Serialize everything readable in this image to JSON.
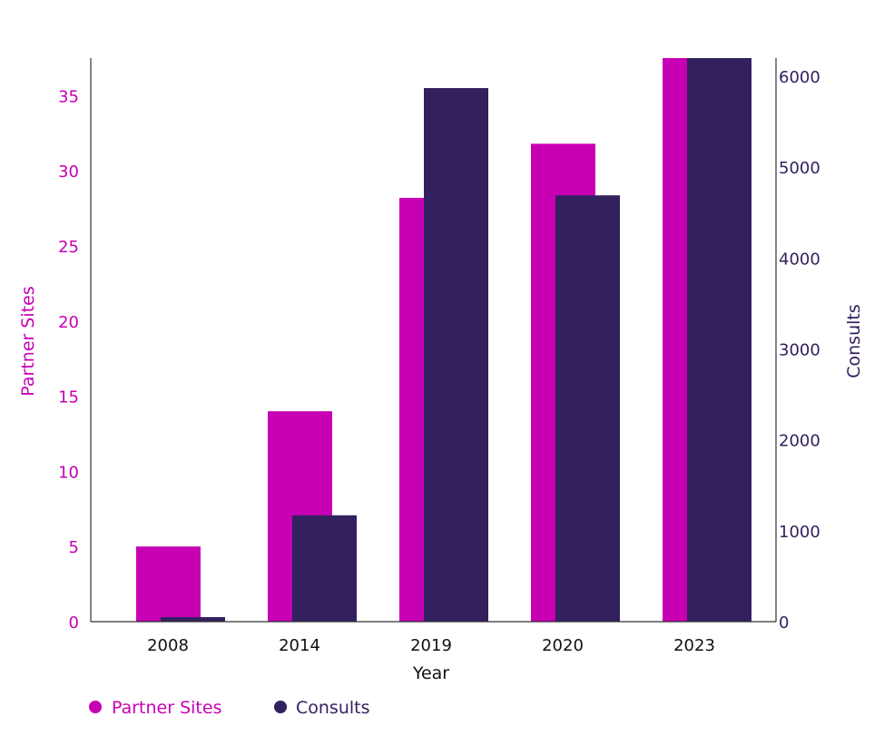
{
  "chart_data": {
    "type": "bar",
    "categories": [
      "2008",
      "2014",
      "2019",
      "2020",
      "2023"
    ],
    "series": [
      {
        "name": "Partner Sites",
        "axis": "left",
        "color": "#c800b4",
        "values": [
          5,
          14,
          28.2,
          31.8,
          38
        ]
      },
      {
        "name": "Consults",
        "axis": "right",
        "color": "#33205f",
        "values": [
          50,
          1170,
          5870,
          4690,
          6290
        ]
      }
    ],
    "xlabel": "Year",
    "ylabel_left": "Partner Sites",
    "ylabel_right": "Consults",
    "ylim_left": [
      0,
      37.5
    ],
    "ylim_right": [
      0,
      6200
    ],
    "yticks_left": [
      0,
      5,
      10,
      15,
      20,
      25,
      30,
      35
    ],
    "yticks_right": [
      0,
      1000,
      2000,
      3000,
      4000,
      5000,
      6000
    ],
    "legend_position": "bottom-left"
  }
}
